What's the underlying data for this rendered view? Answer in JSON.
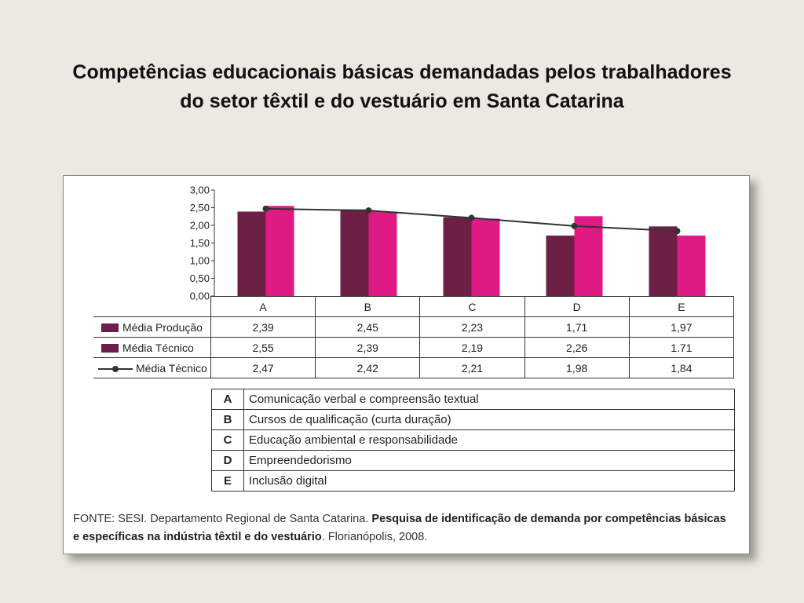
{
  "slide": {
    "title_line1": "Competências educacionais básicas demandadas pelos trabalhadores",
    "title_line2": "do setor têxtil e do vestuário em Santa Catarina"
  },
  "chart_data": {
    "type": "bar",
    "categories": [
      "A",
      "B",
      "C",
      "D",
      "E"
    ],
    "ylim": [
      0,
      3
    ],
    "yticks": [
      "0,00",
      "0,50",
      "1,00",
      "1,50",
      "2,00",
      "2,50",
      "3,00"
    ],
    "series": [
      {
        "name": "Média Produção",
        "kind": "bar",
        "color": "#6e1f45",
        "values": [
          2.39,
          2.45,
          2.23,
          1.71,
          1.97
        ],
        "labels": [
          "2,39",
          "2,45",
          "2,23",
          "1,71",
          "1,97"
        ]
      },
      {
        "name": "Média Técnico",
        "kind": "bar",
        "color": "#e01a84",
        "values": [
          2.55,
          2.39,
          2.19,
          2.26,
          1.71
        ],
        "labels": [
          "2,55",
          "2,39",
          "2,19",
          "2,26",
          "1.71"
        ]
      },
      {
        "name": "Média Técnico",
        "kind": "line",
        "color": "#333333",
        "values": [
          2.47,
          2.42,
          2.21,
          1.98,
          1.84
        ],
        "labels": [
          "2,47",
          "2,42",
          "2,21",
          "1,98",
          "1,84"
        ]
      }
    ],
    "legend_placement": "table-below"
  },
  "legend": [
    {
      "code": "A",
      "text": "Comunicação verbal e compreensão textual"
    },
    {
      "code": "B",
      "text": "Cursos de qualificação (curta duração)"
    },
    {
      "code": "C",
      "text": "Educação ambiental e responsabilidade"
    },
    {
      "code": "D",
      "text": "Empreendedorismo"
    },
    {
      "code": "E",
      "text": "Inclusão digital"
    }
  ],
  "source": {
    "prefix": "FONTE: SESI. Departamento Regional de Santa Catarina. ",
    "bold": "Pesquisa de identificação de demanda por competências básicas e específicas na indústria têxtil e do vestuário",
    "suffix": ". Florianópolis, 2008."
  }
}
